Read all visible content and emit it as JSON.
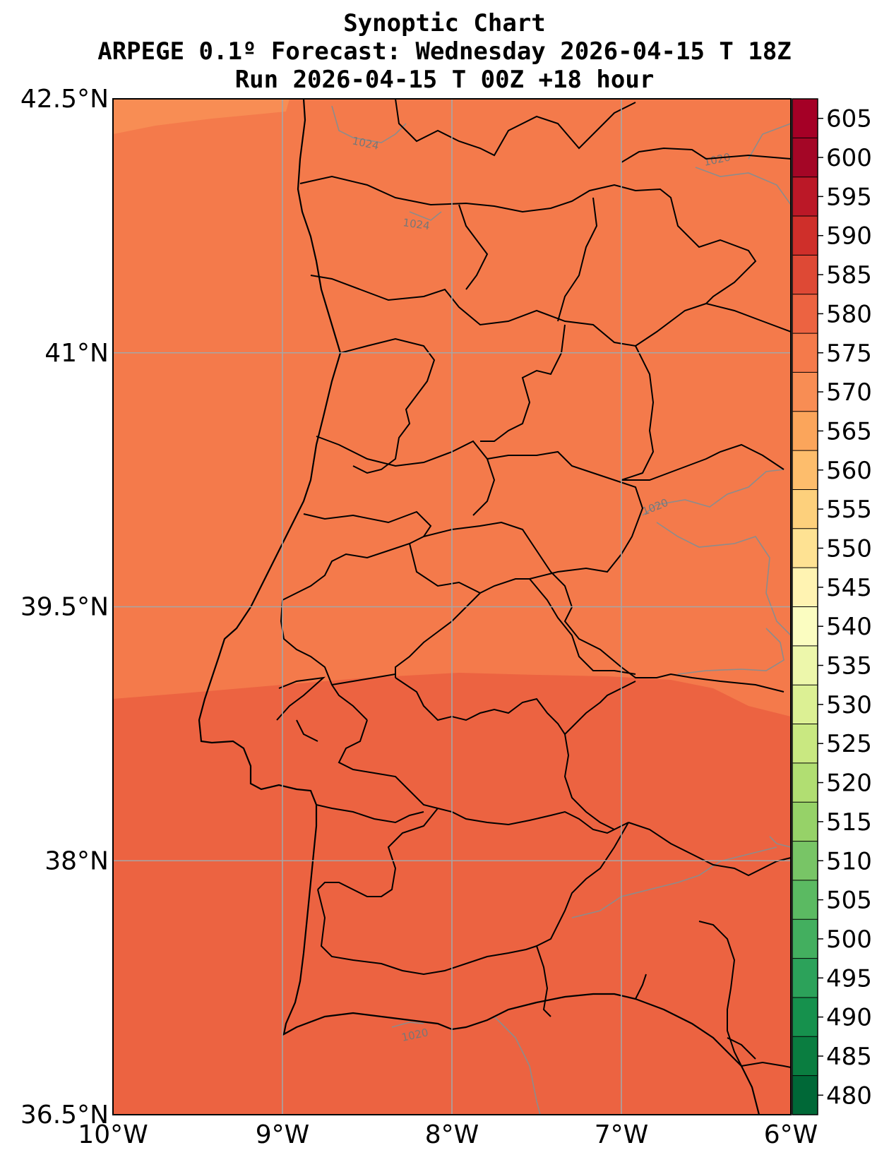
{
  "header": {
    "title": "Synoptic Chart",
    "subtitle": "ARPEGE 0.1º Forecast: Wednesday 2026-04-15 T 18Z",
    "run": "Run 2026-04-15 T 00Z +18 hour"
  },
  "map": {
    "lon_range": [
      -10,
      -6
    ],
    "lat_range": [
      36.5,
      42.5
    ],
    "grid": true,
    "lon_ticks": [
      {
        "value": -10,
        "label": "10°W"
      },
      {
        "value": -9,
        "label": "9°W"
      },
      {
        "value": -8,
        "label": "8°W"
      },
      {
        "value": -7,
        "label": "7°W"
      },
      {
        "value": -6,
        "label": "6°W"
      }
    ],
    "lat_ticks": [
      {
        "value": 42.5,
        "label": "42.5°N"
      },
      {
        "value": 41,
        "label": "41°N"
      },
      {
        "value": 39.5,
        "label": "39.5°N"
      },
      {
        "value": 38,
        "label": "38°N"
      },
      {
        "value": 36.5,
        "label": "36.5°N"
      }
    ],
    "isobar_labels": [
      "1024",
      "1024",
      "1020",
      "1020",
      "1020"
    ],
    "fill_colors": {
      "band_570_575": "#f88d54",
      "band_575_580": "#f47a4b",
      "band_580_585": "#ec6341"
    }
  },
  "colorbar": {
    "levels": [
      480,
      485,
      490,
      495,
      500,
      505,
      510,
      515,
      520,
      525,
      530,
      535,
      540,
      545,
      550,
      555,
      560,
      565,
      570,
      575,
      580,
      585,
      590,
      595,
      600,
      605
    ],
    "labels": [
      "480",
      "485",
      "490",
      "495",
      "500",
      "505",
      "510",
      "515",
      "520",
      "525",
      "530",
      "535",
      "540",
      "545",
      "550",
      "555",
      "560",
      "565",
      "570",
      "575",
      "580",
      "585",
      "590",
      "595",
      "600",
      "605"
    ],
    "colors": [
      "#006837",
      "#0a7d40",
      "#16914d",
      "#2ca25a",
      "#43af5f",
      "#5bba62",
      "#78c566",
      "#96d268",
      "#b1de72",
      "#c9e881",
      "#dcf094",
      "#edf7ab",
      "#fbfdc1",
      "#fff3b2",
      "#fee293",
      "#fdd07c",
      "#fdbd6c",
      "#fba55b",
      "#f88d54",
      "#f47a4b",
      "#ec6341",
      "#de4935",
      "#cf2f2a",
      "#bb1827",
      "#a40626",
      "#a50026"
    ]
  }
}
